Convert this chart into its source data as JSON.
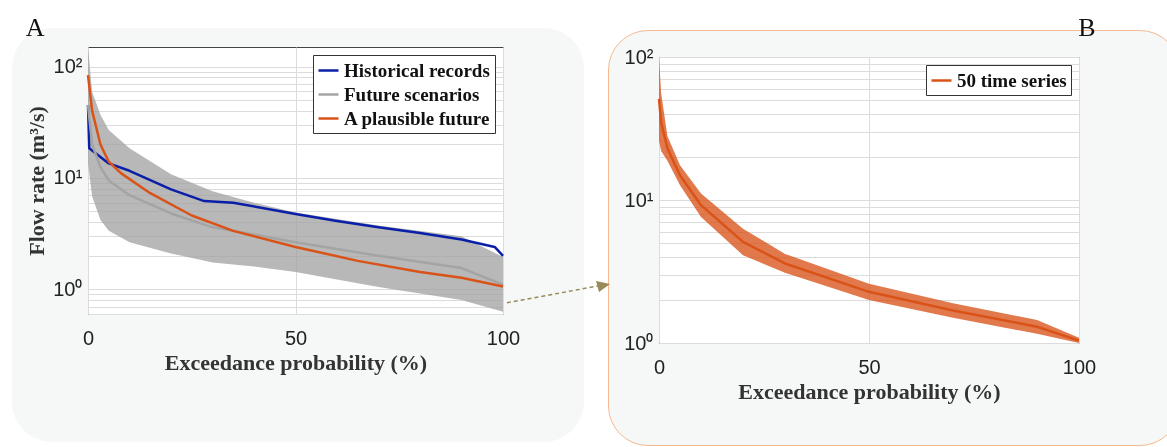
{
  "chart_data": [
    {
      "type": "line",
      "title": "A",
      "xlabel": "Exceedance probability (%)",
      "ylabel": "Flow rate (m³/s)",
      "log": "y",
      "grid": true,
      "legend": "top right",
      "xlim": [
        0,
        100
      ],
      "xticks": [
        0,
        50,
        100
      ],
      "ylim": [
        0.6,
        150
      ],
      "yticks": [
        {
          "value": 0.6,
          "label": null
        },
        {
          "value": 0.7,
          "label": null
        },
        {
          "value": 0.8,
          "label": null
        },
        {
          "value": 0.9,
          "label": null
        },
        {
          "value": 1,
          "label": "10⁰"
        },
        {
          "value": 2,
          "label": null
        },
        {
          "value": 3,
          "label": null
        },
        {
          "value": 4,
          "label": null
        },
        {
          "value": 5,
          "label": null
        },
        {
          "value": 6,
          "label": null
        },
        {
          "value": 7,
          "label": null
        },
        {
          "value": 8,
          "label": null
        },
        {
          "value": 9,
          "label": null
        },
        {
          "value": 10,
          "label": "10¹"
        },
        {
          "value": 20,
          "label": null
        },
        {
          "value": 30,
          "label": null
        },
        {
          "value": 40,
          "label": null
        },
        {
          "value": 50,
          "label": null
        },
        {
          "value": 60,
          "label": null
        },
        {
          "value": 70,
          "label": null
        },
        {
          "value": 80,
          "label": null
        },
        {
          "value": 90,
          "label": null
        },
        {
          "value": 100,
          "label": "10²"
        }
      ],
      "series": [
        {
          "name": "Historical records",
          "color": "#0a1fa8",
          "x": [
            0,
            0.3,
            5,
            10,
            20,
            28,
            35,
            50,
            60,
            70,
            80,
            90,
            98,
            100
          ],
          "values": [
            45,
            18.5,
            13.5,
            11.6,
            7.9,
            6.2,
            6.0,
            4.75,
            4.1,
            3.6,
            3.2,
            2.8,
            2.4,
            2.0
          ]
        },
        {
          "name": "Future scenarios",
          "color": "#a4a4a4",
          "x": [
            0,
            1,
            3,
            5,
            10,
            20,
            30,
            40,
            50,
            70,
            90,
            100
          ],
          "values": [
            45,
            20,
            12.5,
            9.5,
            7.0,
            4.8,
            3.6,
            3.1,
            2.65,
            2.0,
            1.55,
            1.1
          ],
          "upper": [
            150,
            59,
            37,
            27,
            18.5,
            10.8,
            7.6,
            6.0,
            4.9,
            3.75,
            3.0,
            1.95
          ],
          "lower": [
            13.5,
            6.8,
            4.2,
            3.35,
            2.65,
            2.1,
            1.74,
            1.6,
            1.43,
            1.05,
            0.8,
            0.63
          ]
        },
        {
          "name": "A plausible future",
          "color": "#d95319",
          "x": [
            0,
            1,
            3,
            5,
            8,
            15,
            25,
            35,
            50,
            65,
            80,
            90,
            100
          ],
          "values": [
            84,
            40,
            20,
            14,
            11,
            7.3,
            4.6,
            3.35,
            2.4,
            1.8,
            1.43,
            1.27,
            1.06
          ]
        }
      ]
    },
    {
      "type": "line",
      "title": "B",
      "xlabel": "Exceedance probability (%)",
      "log": "y",
      "grid": true,
      "legend": "top right",
      "xlim": [
        0,
        100
      ],
      "xticks": [
        0,
        50,
        100
      ],
      "ylim": [
        1,
        100
      ],
      "yticks": [
        {
          "value": 1,
          "label": "10⁰"
        },
        {
          "value": 2,
          "label": null
        },
        {
          "value": 3,
          "label": null
        },
        {
          "value": 4,
          "label": null
        },
        {
          "value": 5,
          "label": null
        },
        {
          "value": 6,
          "label": null
        },
        {
          "value": 7,
          "label": null
        },
        {
          "value": 8,
          "label": null
        },
        {
          "value": 9,
          "label": null
        },
        {
          "value": 10,
          "label": "10¹"
        },
        {
          "value": 20,
          "label": null
        },
        {
          "value": 30,
          "label": null
        },
        {
          "value": 40,
          "label": null
        },
        {
          "value": 50,
          "label": null
        },
        {
          "value": 60,
          "label": null
        },
        {
          "value": 70,
          "label": null
        },
        {
          "value": 80,
          "label": null
        },
        {
          "value": 90,
          "label": null
        },
        {
          "value": 100,
          "label": "10²"
        }
      ],
      "series": [
        {
          "name": "50 time series",
          "color": "#d95319",
          "x": [
            0,
            0.5,
            2,
            5,
            10,
            20,
            30,
            50,
            70,
            90,
            100
          ],
          "values": [
            51,
            35,
            23,
            14.9,
            9.2,
            5.1,
            3.6,
            2.28,
            1.69,
            1.3,
            1.04
          ],
          "upper": [
            100,
            56,
            28,
            17.5,
            11.1,
            6.3,
            4.2,
            2.6,
            1.9,
            1.45,
            1.09
          ],
          "lower": [
            26,
            22,
            18.8,
            12.7,
            7.6,
            4.1,
            3.1,
            2.0,
            1.5,
            1.16,
            1.0
          ]
        }
      ]
    }
  ]
}
